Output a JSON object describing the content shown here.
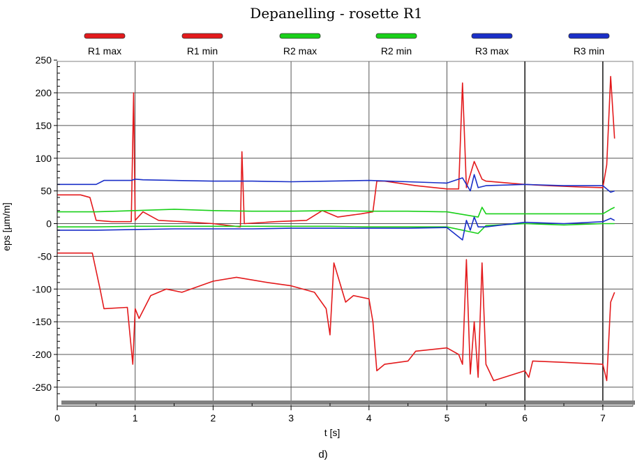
{
  "caption": "d)",
  "chart_data": {
    "type": "line",
    "title": "Depanelling - rosette R1",
    "xlabel": "t [s]",
    "ylabel": "eps [µm/m]",
    "xlim": [
      0,
      7.3
    ],
    "ylim": [
      -265,
      250
    ],
    "xticks": [
      0,
      1,
      2,
      3,
      4,
      5,
      6,
      7
    ],
    "yticks": [
      250,
      200,
      150,
      100,
      50,
      0,
      -50,
      -100,
      -150,
      -200,
      -250
    ],
    "grid": true,
    "legend_position": "top",
    "series": [
      {
        "name": "R1 max",
        "color": "#e31a1c",
        "x": [
          0,
          0.3,
          0.42,
          0.5,
          0.7,
          0.95,
          0.98,
          1.0,
          1.1,
          1.3,
          1.6,
          2.0,
          2.35,
          2.37,
          2.4,
          2.8,
          3.2,
          3.4,
          3.6,
          3.9,
          4.05,
          4.1,
          4.2,
          4.6,
          5.0,
          5.15,
          5.2,
          5.25,
          5.35,
          5.45,
          5.5,
          5.8,
          6.0,
          6.3,
          6.7,
          7.0,
          7.05,
          7.1,
          7.15
        ],
        "y": [
          44,
          44,
          40,
          5,
          3,
          3,
          200,
          5,
          18,
          5,
          3,
          0,
          -5,
          110,
          0,
          3,
          5,
          20,
          10,
          15,
          18,
          65,
          65,
          58,
          53,
          53,
          215,
          55,
          95,
          68,
          65,
          62,
          60,
          58,
          56,
          55,
          90,
          225,
          130
        ]
      },
      {
        "name": "R1 min",
        "color": "#e31a1c",
        "x": [
          0,
          0.45,
          0.55,
          0.6,
          0.9,
          0.97,
          1.0,
          1.05,
          1.2,
          1.4,
          1.6,
          2.0,
          2.3,
          2.7,
          3.0,
          3.3,
          3.45,
          3.5,
          3.55,
          3.7,
          3.8,
          4.0,
          4.05,
          4.1,
          4.2,
          4.5,
          4.6,
          5.0,
          5.15,
          5.2,
          5.25,
          5.3,
          5.35,
          5.4,
          5.45,
          5.5,
          5.6,
          6.0,
          6.05,
          6.1,
          6.5,
          7.0,
          7.05,
          7.1,
          7.15
        ],
        "y": [
          -45,
          -45,
          -100,
          -130,
          -128,
          -215,
          -130,
          -145,
          -110,
          -100,
          -105,
          -88,
          -82,
          -90,
          -95,
          -105,
          -130,
          -170,
          -60,
          -120,
          -110,
          -115,
          -150,
          -225,
          -215,
          -210,
          -195,
          -190,
          -200,
          -215,
          -55,
          -230,
          -150,
          -235,
          -60,
          -215,
          -240,
          -225,
          -235,
          -210,
          -212,
          -215,
          -240,
          -120,
          -105
        ]
      },
      {
        "name": "R2 max",
        "color": "#19d019",
        "x": [
          0,
          0.5,
          1.0,
          1.5,
          2.0,
          2.5,
          3.0,
          3.5,
          4.0,
          4.5,
          5.0,
          5.4,
          5.45,
          5.5,
          6.0,
          6.5,
          7.0,
          7.1,
          7.15
        ],
        "y": [
          18,
          18,
          20,
          22,
          20,
          19,
          19,
          20,
          19,
          19,
          18,
          10,
          25,
          15,
          15,
          15,
          15,
          22,
          25
        ]
      },
      {
        "name": "R2 min",
        "color": "#19d019",
        "x": [
          0,
          0.5,
          1.0,
          1.5,
          2.0,
          2.5,
          3.0,
          3.5,
          4.0,
          4.5,
          5.0,
          5.4,
          5.5,
          6.0,
          6.5,
          7.0,
          7.15
        ],
        "y": [
          -5,
          -5,
          -4,
          -4,
          -4,
          -4,
          -4,
          -4,
          -5,
          -5,
          -5,
          -15,
          -3,
          0,
          -2,
          0,
          0
        ]
      },
      {
        "name": "R3 max",
        "color": "#1a2fc8",
        "x": [
          0,
          0.5,
          0.6,
          0.95,
          1.0,
          1.1,
          1.5,
          2.0,
          2.5,
          3.0,
          3.5,
          4.0,
          4.5,
          5.0,
          5.2,
          5.3,
          5.35,
          5.4,
          5.5,
          6.0,
          6.5,
          7.0,
          7.1,
          7.15
        ],
        "y": [
          60,
          60,
          66,
          66,
          68,
          67,
          66,
          65,
          65,
          64,
          65,
          66,
          64,
          62,
          70,
          50,
          75,
          55,
          58,
          60,
          58,
          58,
          48,
          50
        ]
      },
      {
        "name": "R3 min",
        "color": "#1a2fc8",
        "x": [
          0,
          0.5,
          1.0,
          1.5,
          2.0,
          2.5,
          3.0,
          3.5,
          4.0,
          4.5,
          5.0,
          5.2,
          5.25,
          5.3,
          5.35,
          5.4,
          5.5,
          6.0,
          6.5,
          7.0,
          7.1,
          7.15
        ],
        "y": [
          -10,
          -10,
          -9,
          -8,
          -8,
          -8,
          -7,
          -7,
          -7,
          -7,
          -6,
          -25,
          5,
          -10,
          10,
          -5,
          -5,
          2,
          0,
          3,
          8,
          5
        ]
      }
    ]
  }
}
